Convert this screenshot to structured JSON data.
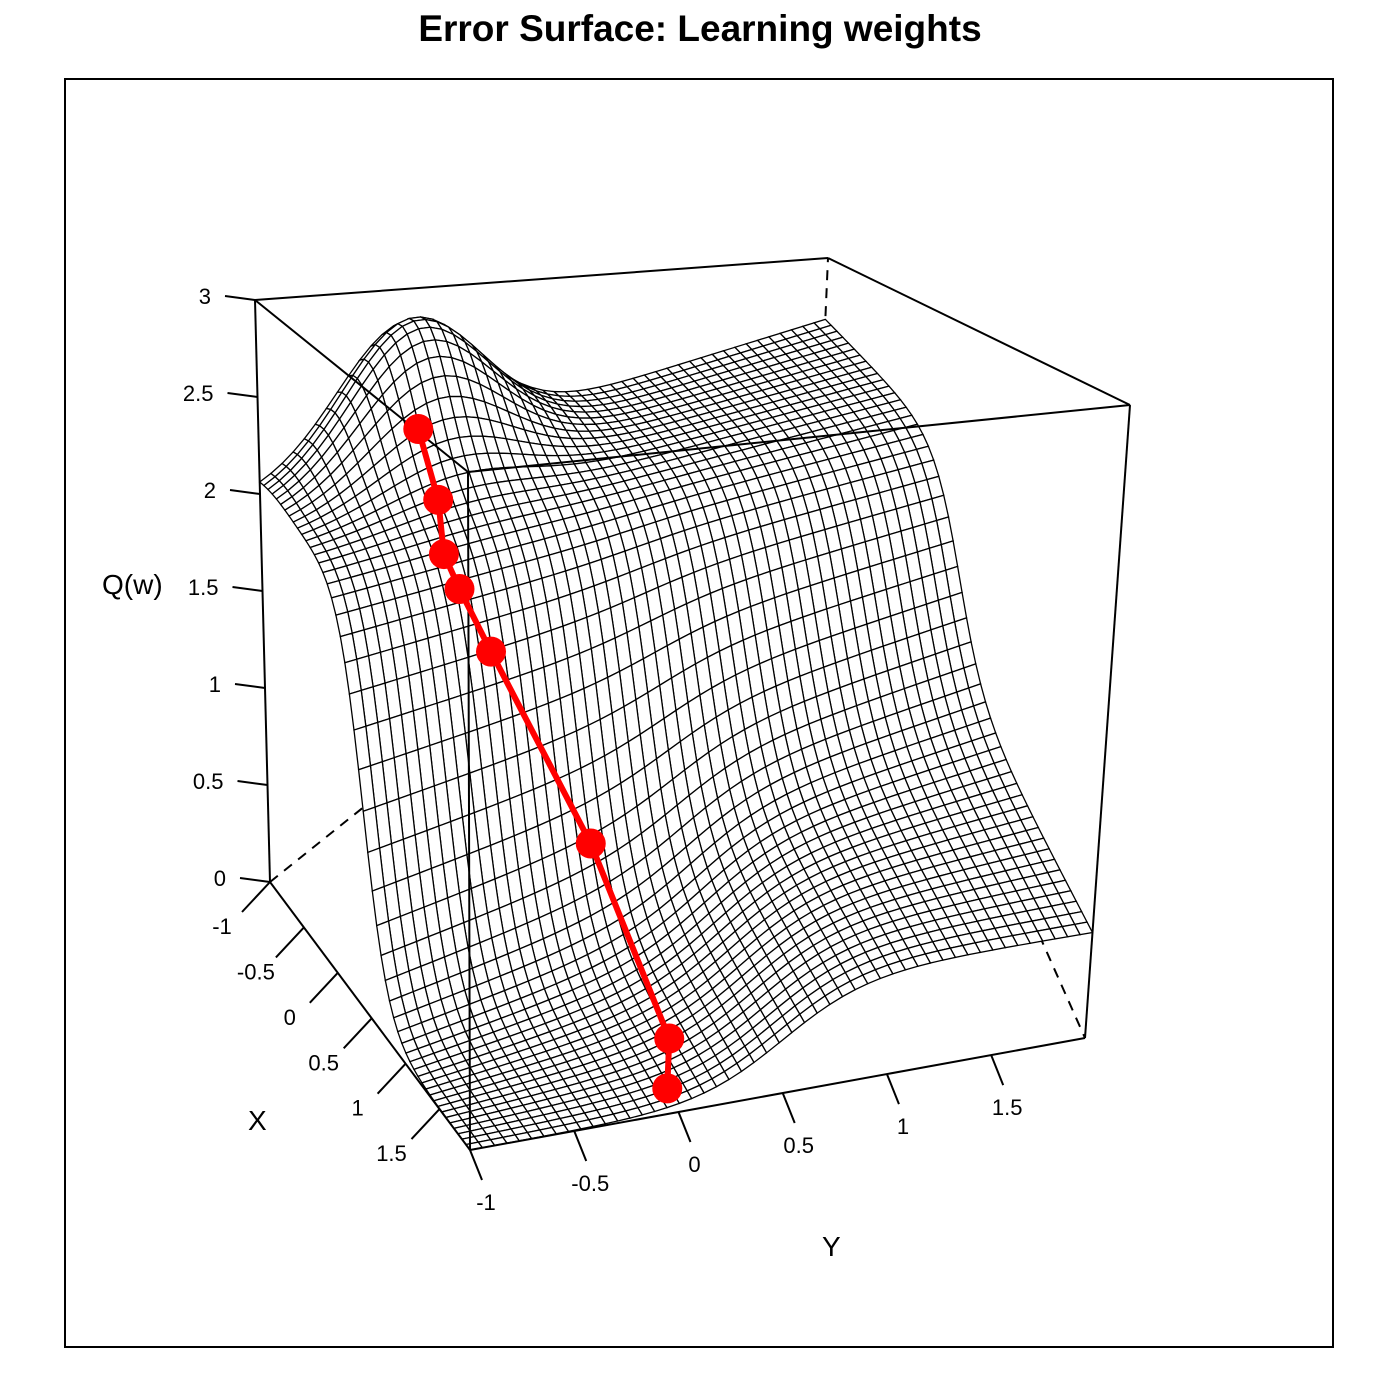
{
  "chart_data": {
    "type": "surface3d",
    "title": "Error Surface: Learning weights",
    "xlabel": "X",
    "ylabel": "Y",
    "zlabel": "Q(w)",
    "xlim": [
      -1,
      1.95
    ],
    "ylim": [
      -1,
      1.95
    ],
    "zlim": [
      0,
      3
    ],
    "x_ticks": [
      "-1",
      "-0.5",
      "0",
      "0.5",
      "1",
      "1.5"
    ],
    "y_ticks": [
      "-1",
      "-0.5",
      "0",
      "0.5",
      "1",
      "1.5"
    ],
    "z_ticks": [
      "0",
      "0.5",
      "1",
      "1.5",
      "2",
      "2.5",
      "3"
    ],
    "surface_color": "#000000",
    "path_color": "#ff0000",
    "path": [
      {
        "x": -0.55,
        "y": -0.35,
        "z": 2.35
      },
      {
        "x": -0.3,
        "y": -0.35,
        "z": 2.05
      },
      {
        "x": -0.1,
        "y": -0.4,
        "z": 1.85
      },
      {
        "x": 0.05,
        "y": -0.38,
        "z": 1.72
      },
      {
        "x": 0.25,
        "y": -0.3,
        "z": 1.45
      },
      {
        "x": 0.9,
        "y": -0.05,
        "z": 0.7
      },
      {
        "x": 1.55,
        "y": 0.1,
        "z": 0.08
      },
      {
        "x": 1.8,
        "y": 0.0,
        "z": 0.02
      }
    ]
  }
}
